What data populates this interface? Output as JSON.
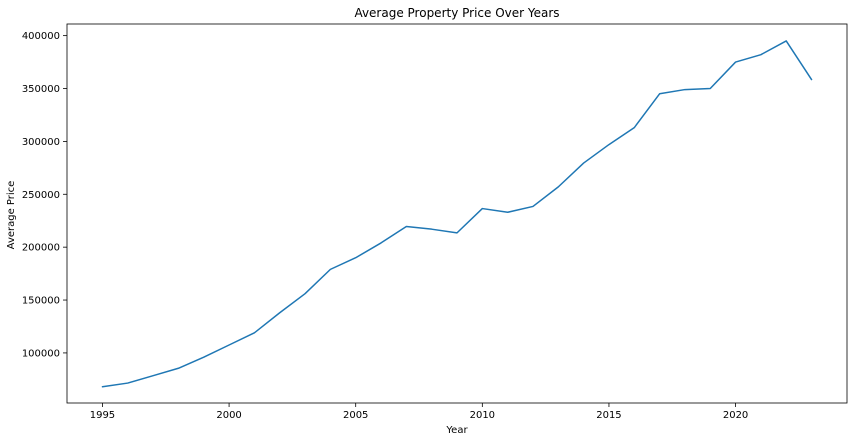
{
  "chart_data": {
    "type": "line",
    "title": "Average Property Price Over Years",
    "xlabel": "Year",
    "ylabel": "Average Price",
    "xlim": [
      1993.6,
      2024.4
    ],
    "ylim": [
      52650,
      411000
    ],
    "xticks": [
      1995,
      2000,
      2005,
      2010,
      2015,
      2020
    ],
    "yticks": [
      100000,
      150000,
      200000,
      250000,
      300000,
      350000,
      400000
    ],
    "grid": false,
    "series": [
      {
        "color": "#1f77b4",
        "x": [
          1995,
          1996,
          1997,
          1998,
          1999,
          2000,
          2001,
          2002,
          2003,
          2004,
          2005,
          2006,
          2007,
          2008,
          2009,
          2010,
          2011,
          2012,
          2013,
          2014,
          2015,
          2016,
          2017,
          2018,
          2019,
          2020,
          2021,
          2022,
          2023
        ],
        "y": [
          68000,
          71500,
          78500,
          85500,
          96000,
          107500,
          119000,
          138000,
          156000,
          179000,
          190000,
          204000,
          219500,
          217000,
          213500,
          236500,
          233000,
          238500,
          257000,
          279500,
          297000,
          313000,
          345000,
          349000,
          350000,
          375000,
          382000,
          395000,
          358500
        ]
      }
    ]
  }
}
